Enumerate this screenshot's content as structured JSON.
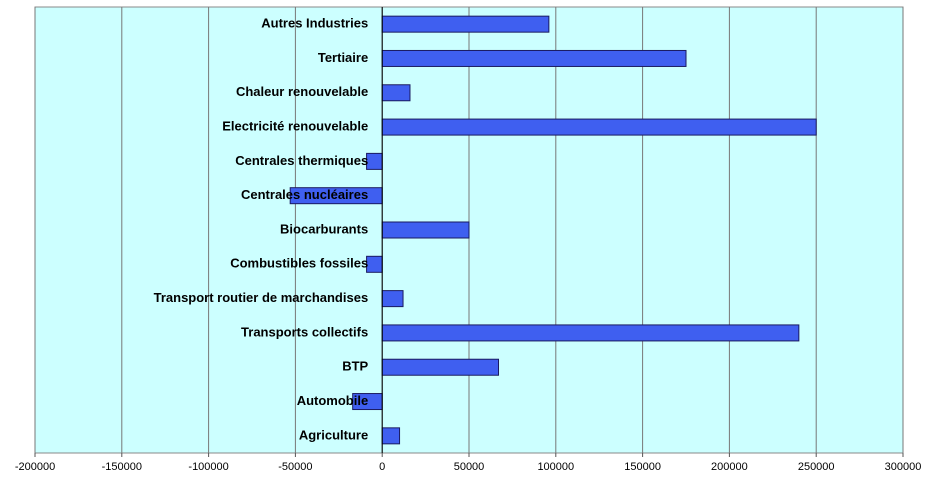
{
  "chart_data": {
    "type": "barh",
    "categories": [
      "Autres Industries",
      "Tertiaire",
      "Chaleur renouvelable",
      "Electricité  renouvelable",
      "Centrales thermiques",
      "Centrales nucléaires",
      "Biocarburants",
      "Combustibles fossiles",
      "Transport routier de marchandises",
      "Transports collectifs",
      "BTP",
      "Automobile",
      "Agriculture"
    ],
    "values": [
      96000,
      175000,
      16000,
      250000,
      -9000,
      -53000,
      50000,
      -9000,
      12000,
      240000,
      67000,
      -17000,
      10000
    ],
    "color": "#3f5ff0",
    "xlim": [
      -200000,
      300000
    ],
    "xticks": [
      -200000,
      -150000,
      -100000,
      -50000,
      0,
      50000,
      100000,
      150000,
      200000,
      250000,
      300000
    ],
    "grid": true
  }
}
